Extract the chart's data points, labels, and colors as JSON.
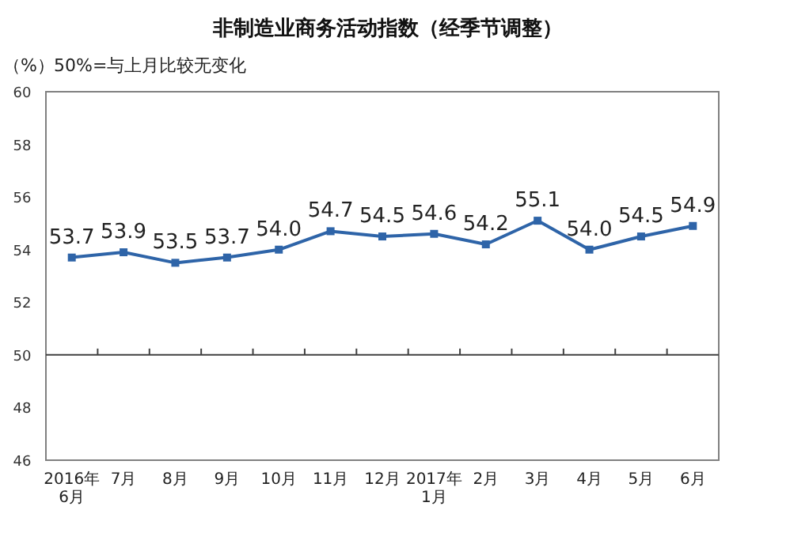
{
  "chart_data": {
    "type": "line",
    "title": "非制造业商务活动指数（经季节调整）",
    "ylabel": "（%）",
    "annotations": [
      "50%=与上月比较无变化"
    ],
    "categories": [
      "2016年\n6月",
      "7月",
      "8月",
      "9月",
      "10月",
      "11月",
      "12月",
      "2017年\n1月",
      "2月",
      "3月",
      "4月",
      "5月",
      "6月"
    ],
    "series": [
      {
        "color": "#2e64a8",
        "values": [
          53.7,
          53.9,
          53.5,
          53.7,
          54.0,
          54.7,
          54.5,
          54.6,
          54.2,
          55.1,
          54.0,
          54.5,
          54.9
        ]
      }
    ],
    "value_labels": [
      "53.7",
      "53.9",
      "53.5",
      "53.7",
      "54.0",
      "54.7",
      "54.5",
      "54.6",
      "54.2",
      "55.1",
      "54.0",
      "54.5",
      "54.9"
    ],
    "ylim": [
      46,
      60
    ],
    "yticks": [
      46,
      48,
      50,
      52,
      54,
      56,
      58,
      60
    ],
    "ref_lines": [
      {
        "axis": "y",
        "value": 50,
        "color": "#404040"
      }
    ],
    "marker": "square",
    "line_style": "solid",
    "grid": false
  }
}
